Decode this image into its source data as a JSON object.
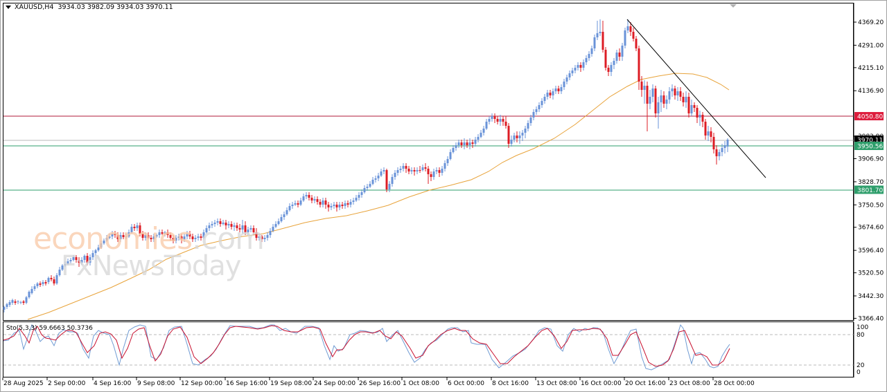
{
  "header": {
    "symbol": "XAUUSD,H4",
    "ohlc": "3934.03 3982.09 3934.03 3970.11",
    "open": "3934.03",
    "high": "3982.09",
    "low": "3934.03",
    "close": "3970.11"
  },
  "watermark": {
    "line1_main": "economies",
    "line1_suffix": ".com",
    "line2": "FxNewsToday"
  },
  "colors": {
    "bull_candle": "#6a93d8",
    "bear_candle": "#dd1c24",
    "ma_line": "#e8a33a",
    "resistance_line": "#b0193a",
    "support_line": "#2e9e6b",
    "current_price_line": "#b8b8b8",
    "trendline": "#000000",
    "stoch_main": "#6f9bd3",
    "stoch_signal": "#c8102e"
  },
  "price_axis": {
    "ticks": [
      "4369.20",
      "4291.00",
      "4215.10",
      "4136.90",
      "3982.90",
      "3906.90",
      "3828.70",
      "3750.50",
      "3674.60",
      "3596.40",
      "3520.50",
      "3442.30",
      "3366.40"
    ],
    "badges": [
      {
        "value": "4050.80",
        "color": "#dd1c3c",
        "text_color": "#ffffff"
      },
      {
        "value": "3970.11",
        "color": "#000000",
        "text_color": "#ffffff"
      },
      {
        "value": "3950.56",
        "color": "#2e9e6b",
        "text_color": "#ffffff"
      },
      {
        "value": "3801.70",
        "color": "#2e9e6b",
        "text_color": "#ffffff"
      }
    ]
  },
  "time_axis": {
    "ticks": [
      "28 Aug 2025",
      "2 Sep 00:00",
      "4 Sep 16:00",
      "9 Sep 08:00",
      "12 Sep 00:00",
      "16 Sep 16:00",
      "19 Sep 08:00",
      "24 Sep 00:00",
      "26 Sep 16:00",
      "1 Oct 08:00",
      "6 Oct 00:00",
      "8 Oct 16:00",
      "13 Oct 08:00",
      "16 Oct 00:00",
      "20 Oct 16:00",
      "23 Oct 08:00",
      "28 Oct 00:00"
    ]
  },
  "stochastic": {
    "label": "Sto(5,3,3) 59.6663 50.3736",
    "params": "5,3,3",
    "main_value": "59.6663",
    "signal_value": "50.3736",
    "levels": [
      "100",
      "80",
      "20",
      "0"
    ]
  },
  "chart_data": {
    "type": "candlestick",
    "title": "XAUUSD,H4",
    "symbol": "XAUUSD",
    "timeframe": "H4",
    "xlabel": "",
    "ylabel": "",
    "ylim": [
      3366.4,
      4400.0
    ],
    "grid": false,
    "horizontal_levels": [
      {
        "price": 4050.8,
        "role": "resistance",
        "color": "#b0193a"
      },
      {
        "price": 3970.11,
        "role": "current price",
        "color": "#b8b8b8"
      },
      {
        "price": 3950.56,
        "role": "support",
        "color": "#2e9e6b"
      },
      {
        "price": 3801.7,
        "role": "support",
        "color": "#2e9e6b"
      }
    ],
    "trendline": {
      "from": {
        "date": "20 Oct",
        "price": 4381
      },
      "to": {
        "date": "30 Oct",
        "price": 3851
      }
    },
    "moving_average": {
      "approx_points": [
        {
          "x": "28 Aug",
          "price": 3320
        },
        {
          "x": "9 Sep",
          "price": 3510
        },
        {
          "x": "19 Sep",
          "price": 3640
        },
        {
          "x": "1 Oct",
          "price": 3800
        },
        {
          "x": "8 Oct",
          "price": 3920
        },
        {
          "x": "16 Oct",
          "price": 4070
        },
        {
          "x": "20 Oct",
          "price": 4170
        },
        {
          "x": "23 Oct",
          "price": 4200
        },
        {
          "x": "28 Oct",
          "price": 4140
        }
      ]
    },
    "last_candle": {
      "open": 3934.03,
      "high": 3982.09,
      "low": 3934.03,
      "close": 3970.11
    },
    "period_high_approx": 4381,
    "period_low_approx": 3380,
    "stochastic_levels": [
      20,
      80
    ],
    "stochastic_last": {
      "main": 59.6663,
      "signal": 50.3736
    }
  }
}
